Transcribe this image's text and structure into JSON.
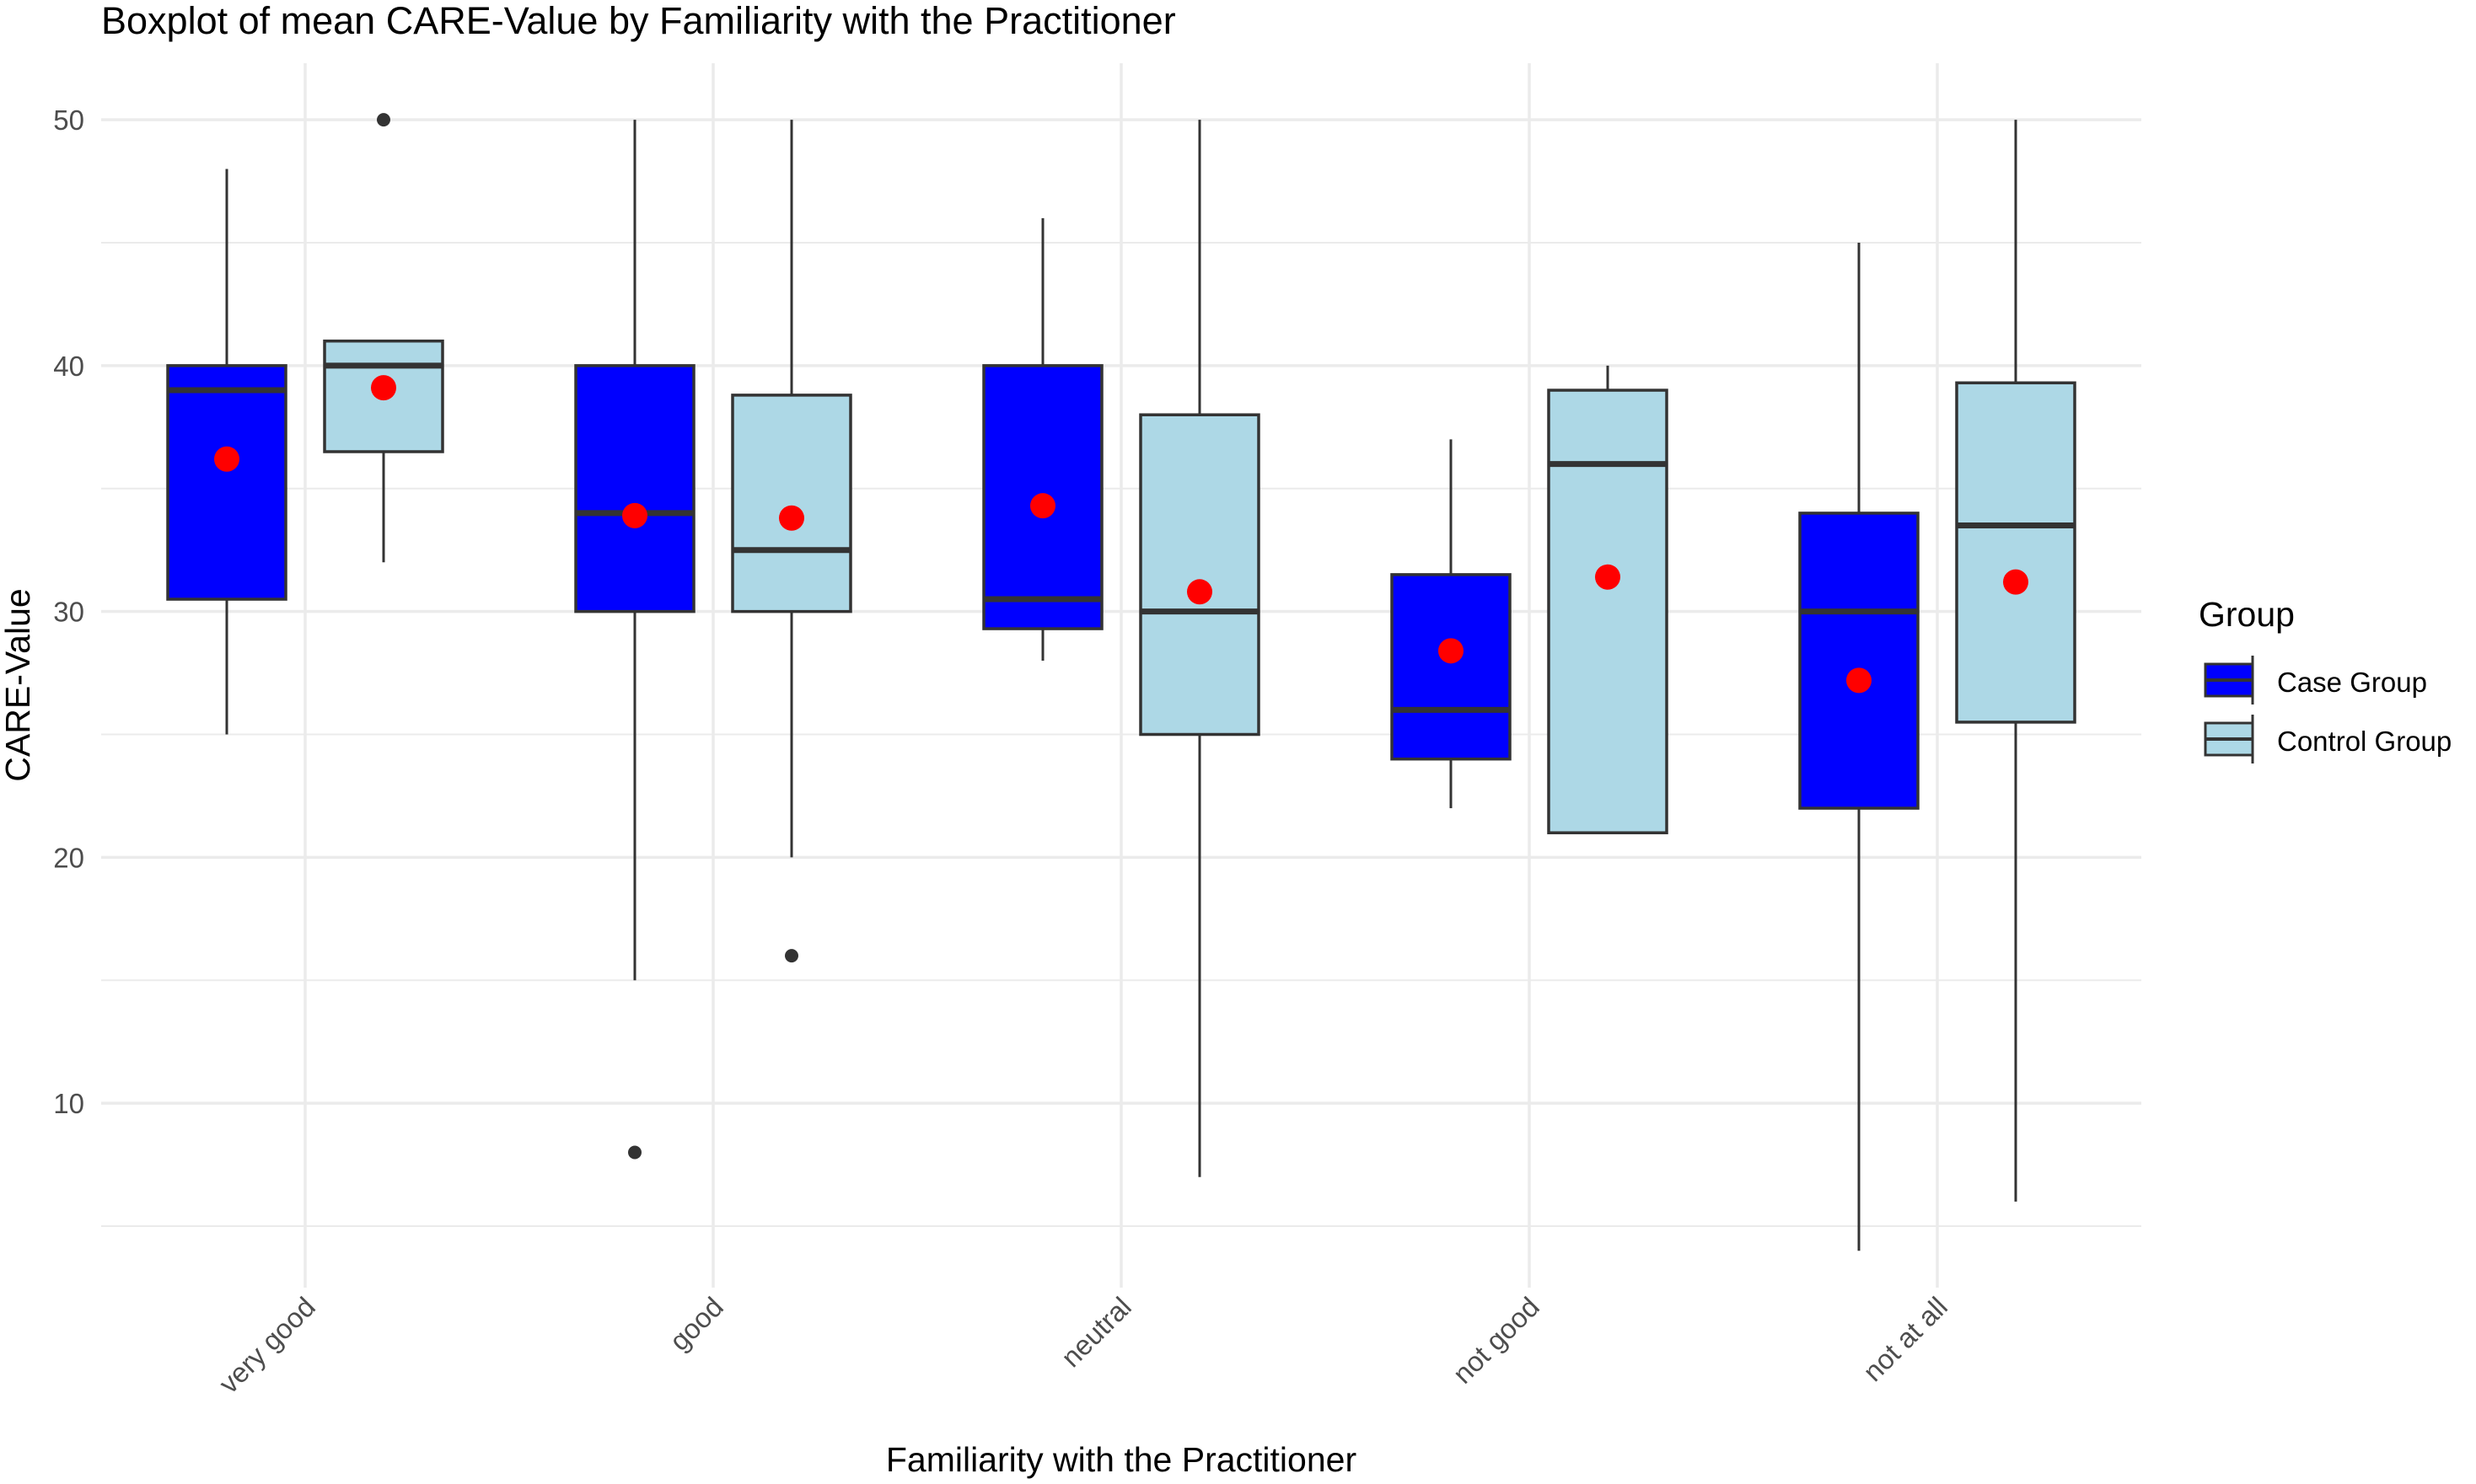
{
  "chart_data": {
    "type": "boxplot",
    "title": "Boxplot of mean CARE-Value by Familiarity with the Practitioner",
    "xlabel": "Familiarity with the Practitioner",
    "ylabel": "CARE-Value",
    "ylim": [
      2.5,
      52.3
    ],
    "yticks": [
      10,
      20,
      30,
      40,
      50
    ],
    "grid": true,
    "categories": [
      "very good",
      "good",
      "neutral",
      "not good",
      "not at all"
    ],
    "legend": {
      "title": "Group",
      "position": "right",
      "entries": [
        "Case Group",
        "Control Group"
      ]
    },
    "colors": {
      "case": "#0000ff",
      "control": "#add8e6",
      "mean_point": "#ff0000",
      "outline": "#333333",
      "grid": "#ebebeb"
    },
    "series": [
      {
        "name": "Case Group",
        "boxes": [
          {
            "category": "very good",
            "whisker_low": 25,
            "q1": 30.5,
            "median": 39,
            "q3": 40,
            "whisker_high": 48,
            "mean": 36.2,
            "outliers": []
          },
          {
            "category": "good",
            "whisker_low": 15,
            "q1": 30,
            "median": 34,
            "q3": 40,
            "whisker_high": 50,
            "mean": 33.9,
            "outliers": [
              8
            ]
          },
          {
            "category": "neutral",
            "whisker_low": 28,
            "q1": 29.3,
            "median": 30.5,
            "q3": 40,
            "whisker_high": 46,
            "mean": 34.3,
            "outliers": []
          },
          {
            "category": "not good",
            "whisker_low": 22,
            "q1": 24,
            "median": 26,
            "q3": 31.5,
            "whisker_high": 37,
            "mean": 28.4,
            "outliers": []
          },
          {
            "category": "not at all",
            "whisker_low": 4,
            "q1": 22,
            "median": 30,
            "q3": 34,
            "whisker_high": 45,
            "mean": 27.2,
            "outliers": []
          }
        ]
      },
      {
        "name": "Control Group",
        "boxes": [
          {
            "category": "very good",
            "whisker_low": 32,
            "q1": 36.5,
            "median": 40,
            "q3": 41,
            "whisker_high": 41,
            "mean": 39.1,
            "outliers": [
              50
            ]
          },
          {
            "category": "good",
            "whisker_low": 20,
            "q1": 30,
            "median": 32.5,
            "q3": 38.8,
            "whisker_high": 50,
            "mean": 33.8,
            "outliers": [
              16
            ]
          },
          {
            "category": "neutral",
            "whisker_low": 7,
            "q1": 25,
            "median": 30,
            "q3": 38,
            "whisker_high": 50,
            "mean": 30.8,
            "outliers": []
          },
          {
            "category": "not good",
            "whisker_low": 21,
            "q1": 21,
            "median": 36,
            "q3": 39,
            "whisker_high": 40,
            "mean": 31.4,
            "outliers": []
          },
          {
            "category": "not at all",
            "whisker_low": 6,
            "q1": 25.5,
            "median": 33.5,
            "q3": 39.3,
            "whisker_high": 50,
            "mean": 31.2,
            "outliers": []
          }
        ]
      }
    ]
  }
}
